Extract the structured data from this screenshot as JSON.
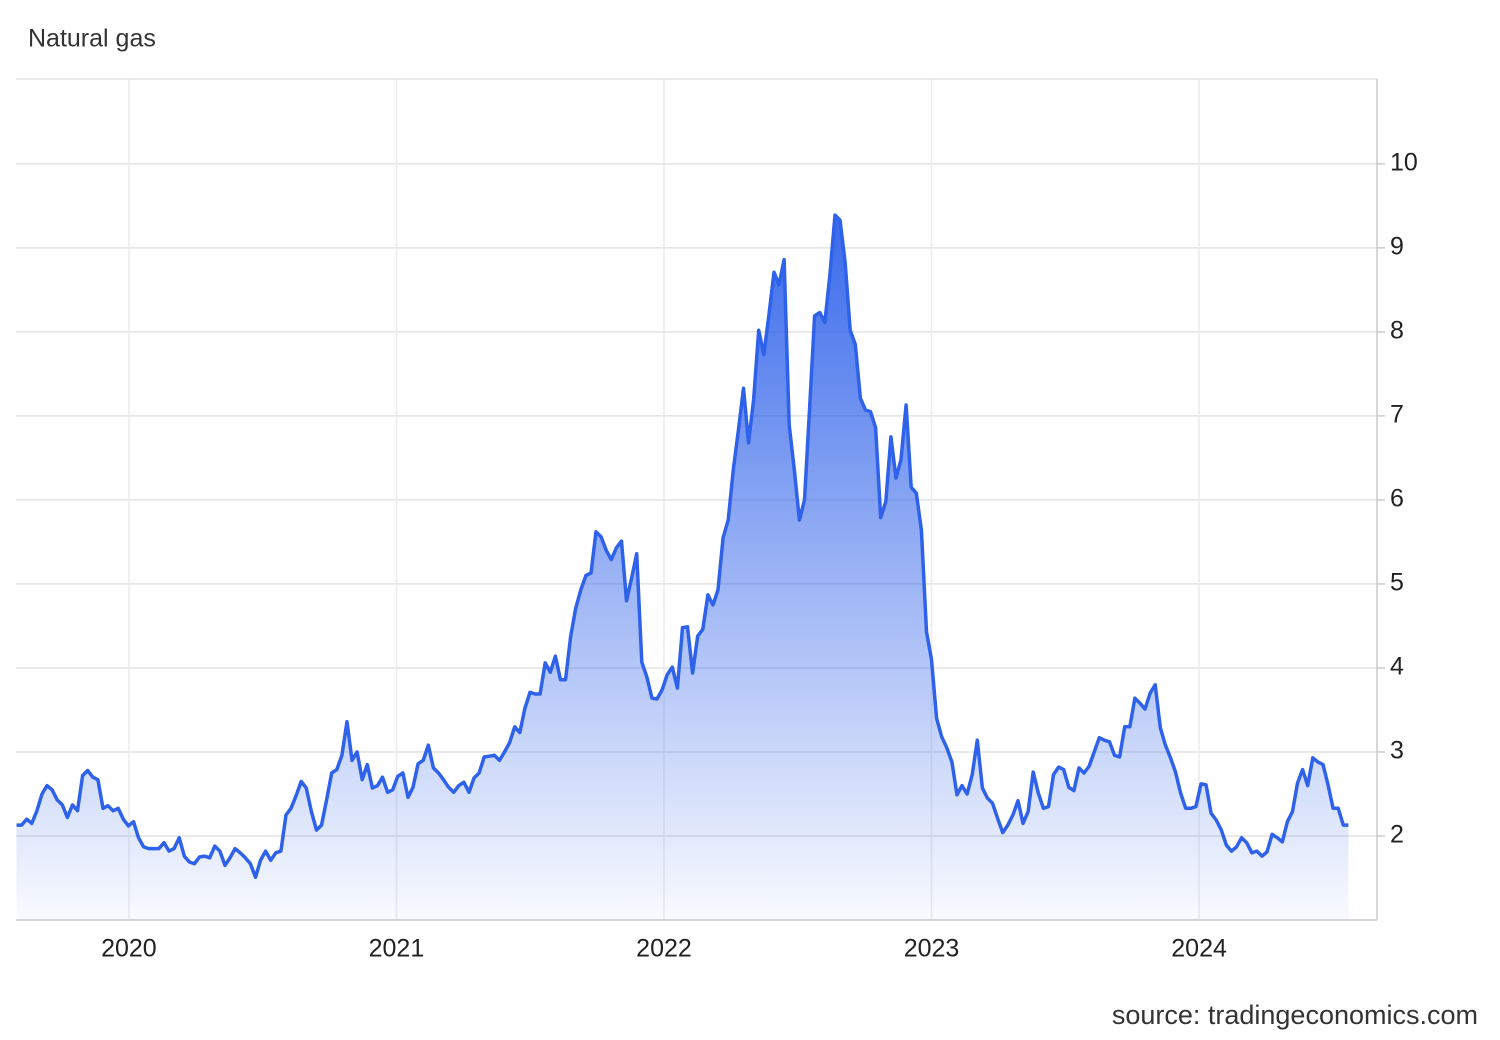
{
  "chart_data": {
    "type": "area",
    "title": "Natural gas",
    "source": "source: tradingeconomics.com",
    "color": "#2f62ea",
    "grid": true,
    "xlim": [
      2019.578,
      2024.665
    ],
    "xticks": [
      2020,
      2021,
      2022,
      2023,
      2024
    ],
    "ylim": [
      1,
      11.01
    ],
    "yticks": [
      2,
      3,
      4,
      5,
      6,
      7,
      8,
      9,
      10
    ],
    "x": [
      2019.58,
      2019.599,
      2019.618,
      2019.637,
      2019.656,
      2019.675,
      2019.694,
      2019.713,
      2019.732,
      2019.751,
      2019.77,
      2019.789,
      2019.808,
      2019.827,
      2019.846,
      2019.865,
      2019.884,
      2019.903,
      2019.922,
      2019.941,
      2019.96,
      2019.979,
      2019.998,
      2020.017,
      2020.036,
      2020.055,
      2020.074,
      2020.093,
      2020.112,
      2020.131,
      2020.15,
      2020.169,
      2020.188,
      2020.207,
      2020.226,
      2020.245,
      2020.264,
      2020.283,
      2020.302,
      2020.321,
      2020.34,
      2020.359,
      2020.378,
      2020.397,
      2020.416,
      2020.435,
      2020.454,
      2020.473,
      2020.492,
      2020.511,
      2020.53,
      2020.549,
      2020.568,
      2020.587,
      2020.606,
      2020.625,
      2020.644,
      2020.663,
      2020.682,
      2020.701,
      2020.72,
      2020.739,
      2020.758,
      2020.777,
      2020.796,
      2020.815,
      2020.834,
      2020.853,
      2020.872,
      2020.891,
      2020.91,
      2020.929,
      2020.948,
      2020.967,
      2020.986,
      2021.005,
      2021.024,
      2021.043,
      2021.062,
      2021.081,
      2021.1,
      2021.119,
      2021.138,
      2021.157,
      2021.176,
      2021.195,
      2021.214,
      2021.233,
      2021.252,
      2021.271,
      2021.29,
      2021.309,
      2021.328,
      2021.347,
      2021.366,
      2021.385,
      2021.404,
      2021.423,
      2021.442,
      2021.461,
      2021.48,
      2021.499,
      2021.518,
      2021.537,
      2021.556,
      2021.575,
      2021.594,
      2021.613,
      2021.632,
      2021.651,
      2021.67,
      2021.689,
      2021.708,
      2021.727,
      2021.746,
      2021.765,
      2021.784,
      2021.803,
      2021.822,
      2021.841,
      2021.86,
      2021.879,
      2021.898,
      2021.917,
      2021.936,
      2021.955,
      2021.974,
      2021.993,
      2022.012,
      2022.031,
      2022.05,
      2022.069,
      2022.088,
      2022.107,
      2022.126,
      2022.145,
      2022.164,
      2022.183,
      2022.202,
      2022.221,
      2022.24,
      2022.259,
      2022.278,
      2022.297,
      2022.316,
      2022.335,
      2022.354,
      2022.373,
      2022.392,
      2022.411,
      2022.43,
      2022.449,
      2022.468,
      2022.487,
      2022.506,
      2022.525,
      2022.544,
      2022.563,
      2022.582,
      2022.601,
      2022.62,
      2022.639,
      2022.658,
      2022.677,
      2022.696,
      2022.715,
      2022.734,
      2022.753,
      2022.772,
      2022.791,
      2022.81,
      2022.829,
      2022.848,
      2022.867,
      2022.886,
      2022.905,
      2022.924,
      2022.943,
      2022.962,
      2022.981,
      2023,
      2023.019,
      2023.038,
      2023.057,
      2023.076,
      2023.095,
      2023.114,
      2023.133,
      2023.152,
      2023.171,
      2023.19,
      2023.209,
      2023.228,
      2023.247,
      2023.266,
      2023.285,
      2023.304,
      2023.323,
      2023.342,
      2023.361,
      2023.38,
      2023.399,
      2023.418,
      2023.437,
      2023.456,
      2023.475,
      2023.494,
      2023.513,
      2023.532,
      2023.551,
      2023.57,
      2023.589,
      2023.608,
      2023.627,
      2023.646,
      2023.665,
      2023.684,
      2023.703,
      2023.722,
      2023.741,
      2023.76,
      2023.779,
      2023.798,
      2023.817,
      2023.836,
      2023.855,
      2023.874,
      2023.893,
      2023.912,
      2023.931,
      2023.95,
      2023.969,
      2023.988,
      2024.007,
      2024.026,
      2024.045,
      2024.064,
      2024.083,
      2024.102,
      2024.121,
      2024.14,
      2024.159,
      2024.178,
      2024.197,
      2024.216,
      2024.235,
      2024.254,
      2024.273,
      2024.292,
      2024.311,
      2024.33,
      2024.349,
      2024.368,
      2024.387,
      2024.406,
      2024.425,
      2024.444,
      2024.463,
      2024.482,
      2024.501,
      2024.52,
      2024.539,
      2024.558
    ],
    "values": [
      2.13,
      2.13,
      2.2,
      2.15,
      2.3,
      2.5,
      2.6,
      2.55,
      2.43,
      2.37,
      2.22,
      2.37,
      2.3,
      2.72,
      2.78,
      2.7,
      2.67,
      2.33,
      2.36,
      2.3,
      2.33,
      2.2,
      2.12,
      2.17,
      1.98,
      1.87,
      1.85,
      1.85,
      1.85,
      1.92,
      1.82,
      1.85,
      1.98,
      1.76,
      1.69,
      1.67,
      1.75,
      1.76,
      1.74,
      1.88,
      1.82,
      1.65,
      1.74,
      1.85,
      1.8,
      1.74,
      1.67,
      1.51,
      1.71,
      1.82,
      1.71,
      1.8,
      1.82,
      2.25,
      2.33,
      2.48,
      2.65,
      2.57,
      2.29,
      2.07,
      2.13,
      2.43,
      2.75,
      2.79,
      2.96,
      3.36,
      2.9,
      3.0,
      2.67,
      2.85,
      2.57,
      2.6,
      2.7,
      2.52,
      2.55,
      2.71,
      2.75,
      2.46,
      2.58,
      2.86,
      2.9,
      3.08,
      2.81,
      2.75,
      2.67,
      2.58,
      2.52,
      2.6,
      2.64,
      2.52,
      2.69,
      2.75,
      2.94,
      2.95,
      2.96,
      2.9,
      3.0,
      3.11,
      3.3,
      3.23,
      3.52,
      3.71,
      3.69,
      3.69,
      4.06,
      3.95,
      4.14,
      3.86,
      3.86,
      4.37,
      4.71,
      4.93,
      5.1,
      5.13,
      5.62,
      5.56,
      5.4,
      5.29,
      5.43,
      5.51,
      4.8,
      5.07,
      5.36,
      4.07,
      3.89,
      3.64,
      3.63,
      3.74,
      3.92,
      4.01,
      3.76,
      4.48,
      4.49,
      3.94,
      4.38,
      4.46,
      4.87,
      4.75,
      4.93,
      5.55,
      5.76,
      6.36,
      6.83,
      7.33,
      6.68,
      7.19,
      8.02,
      7.73,
      8.2,
      8.71,
      8.56,
      8.86,
      6.89,
      6.36,
      5.76,
      6.0,
      7.07,
      8.19,
      8.23,
      8.11,
      8.68,
      9.39,
      9.33,
      8.83,
      8.02,
      7.85,
      7.21,
      7.07,
      7.05,
      6.86,
      5.79,
      5.98,
      6.75,
      6.26,
      6.48,
      7.13,
      6.15,
      6.08,
      5.64,
      4.43,
      4.1,
      3.4,
      3.18,
      3.05,
      2.88,
      2.49,
      2.6,
      2.5,
      2.73,
      3.14,
      2.57,
      2.45,
      2.39,
      2.21,
      2.04,
      2.13,
      2.25,
      2.42,
      2.15,
      2.29,
      2.76,
      2.51,
      2.33,
      2.35,
      2.73,
      2.82,
      2.79,
      2.58,
      2.54,
      2.81,
      2.75,
      2.83,
      3.0,
      3.17,
      3.14,
      3.12,
      2.96,
      2.94,
      3.3,
      3.3,
      3.64,
      3.58,
      3.51,
      3.7,
      3.8,
      3.29,
      3.08,
      2.93,
      2.76,
      2.51,
      2.33,
      2.33,
      2.35,
      2.62,
      2.61,
      2.27,
      2.19,
      2.07,
      1.89,
      1.82,
      1.87,
      1.98,
      1.92,
      1.8,
      1.82,
      1.76,
      1.81,
      2.02,
      1.98,
      1.93,
      2.17,
      2.29,
      2.63,
      2.79,
      2.6,
      2.93,
      2.88,
      2.85,
      2.61,
      2.33,
      2.33,
      2.13,
      2.13
    ]
  }
}
